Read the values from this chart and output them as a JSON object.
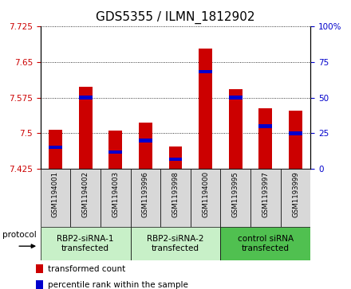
{
  "title": "GDS5355 / ILMN_1812902",
  "samples": [
    "GSM1194001",
    "GSM1194002",
    "GSM1194003",
    "GSM1193996",
    "GSM1193998",
    "GSM1194000",
    "GSM1193995",
    "GSM1193997",
    "GSM1193999"
  ],
  "red_values": [
    7.508,
    7.598,
    7.506,
    7.523,
    7.472,
    7.678,
    7.593,
    7.553,
    7.548
  ],
  "blue_values": [
    15,
    50,
    12,
    20,
    7,
    68,
    50,
    30,
    25
  ],
  "ylim_left": [
    7.425,
    7.725
  ],
  "ylim_right": [
    0,
    100
  ],
  "yticks_left": [
    7.425,
    7.5,
    7.575,
    7.65,
    7.725
  ],
  "yticks_right": [
    0,
    25,
    50,
    75,
    100
  ],
  "groups": [
    {
      "label": "RBP2-siRNA-1\ntransfected",
      "indices": [
        0,
        1,
        2
      ],
      "color": "#c8f0c8"
    },
    {
      "label": "RBP2-siRNA-2\ntransfected",
      "indices": [
        3,
        4,
        5
      ],
      "color": "#c8f0c8"
    },
    {
      "label": "control siRNA\ntransfected",
      "indices": [
        6,
        7,
        8
      ],
      "color": "#50c050"
    }
  ],
  "red_color": "#cc0000",
  "blue_color": "#0000cc",
  "title_fontsize": 11,
  "tick_fontsize": 7.5,
  "left_tick_color": "#cc0000",
  "right_tick_color": "#0000cc",
  "sample_box_color": "#d8d8d8",
  "protocol_label": "protocol",
  "legend_red": "transformed count",
  "legend_blue": "percentile rank within the sample",
  "bar_bottom": 7.425
}
